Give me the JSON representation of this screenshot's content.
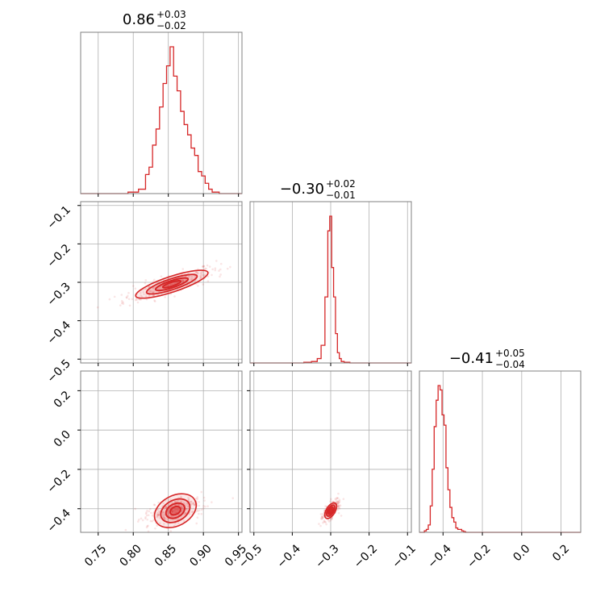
{
  "chart_data": {
    "type": "corner",
    "color": "#d62728",
    "grid": true,
    "parameters": [
      {
        "median_label": "0.86",
        "plus_label": "+0.03",
        "minus_label": "−0.02",
        "range": [
          0.725,
          0.955
        ],
        "ticks": [
          0.75,
          0.8,
          0.85,
          0.9,
          0.95
        ],
        "tick_labels": [
          "0.75",
          "0.80",
          "0.85",
          "0.90",
          "0.95"
        ],
        "hist_x": [
          0.8,
          0.815,
          0.82,
          0.825,
          0.83,
          0.835,
          0.84,
          0.845,
          0.85,
          0.855,
          0.86,
          0.865,
          0.87,
          0.875,
          0.88,
          0.885,
          0.89,
          0.895,
          0.9,
          0.905,
          0.91,
          0.915
        ],
        "hist_counts": [
          0.01,
          0.03,
          0.13,
          0.18,
          0.33,
          0.44,
          0.59,
          0.75,
          0.87,
          1.0,
          0.8,
          0.7,
          0.56,
          0.47,
          0.4,
          0.31,
          0.26,
          0.15,
          0.12,
          0.07,
          0.03,
          0.01
        ]
      },
      {
        "median_label": "−0.30",
        "plus_label": "+0.02",
        "minus_label": "−0.01",
        "range": [
          -0.51,
          -0.09
        ],
        "ticks": [
          -0.5,
          -0.4,
          -0.3,
          -0.2,
          -0.1
        ],
        "tick_labels": [
          "−0.5",
          "−0.4",
          "−0.3",
          "−0.2",
          "−0.1"
        ],
        "hist_x": [
          -0.36,
          -0.34,
          -0.33,
          -0.32,
          -0.31,
          -0.305,
          -0.3,
          -0.295,
          -0.29,
          -0.285,
          -0.28,
          -0.275,
          -0.27,
          -0.26
        ],
        "hist_counts": [
          0.005,
          0.01,
          0.03,
          0.12,
          0.45,
          0.9,
          1.0,
          0.65,
          0.45,
          0.2,
          0.07,
          0.03,
          0.01,
          0.005
        ]
      },
      {
        "median_label": "−0.41",
        "plus_label": "+0.05",
        "minus_label": "−0.04",
        "range": [
          -0.52,
          0.3
        ],
        "ticks": [
          -0.4,
          -0.2,
          0.0,
          0.2
        ],
        "tick_labels": [
          "−0.4",
          "−0.2",
          "0.0",
          "0.2"
        ],
        "hist_x": [
          -0.49,
          -0.48,
          -0.47,
          -0.46,
          -0.45,
          -0.44,
          -0.43,
          -0.42,
          -0.41,
          -0.4,
          -0.39,
          -0.38,
          -0.37,
          -0.36,
          -0.35,
          -0.34,
          -0.33,
          -0.32,
          -0.31,
          -0.3,
          -0.29
        ],
        "hist_counts": [
          0.01,
          0.02,
          0.05,
          0.18,
          0.43,
          0.72,
          0.9,
          1.0,
          0.97,
          0.8,
          0.73,
          0.44,
          0.29,
          0.17,
          0.1,
          0.07,
          0.03,
          0.02,
          0.02,
          0.01,
          0.005
        ]
      }
    ],
    "correlations": [
      {
        "row": 1,
        "col": 0,
        "center": [
          0.855,
          -0.305
        ],
        "slope": 0.6,
        "spread_along": 0.03,
        "spread_across": 0.008
      },
      {
        "row": 2,
        "col": 0,
        "center": [
          0.86,
          -0.41
        ],
        "slope": 1.9,
        "spread_along": 0.03,
        "spread_across": 0.012
      },
      {
        "row": 2,
        "col": 1,
        "center": [
          -0.3,
          -0.41
        ],
        "slope": 3.2,
        "spread_along": 0.02,
        "spread_across": 0.006
      }
    ]
  }
}
